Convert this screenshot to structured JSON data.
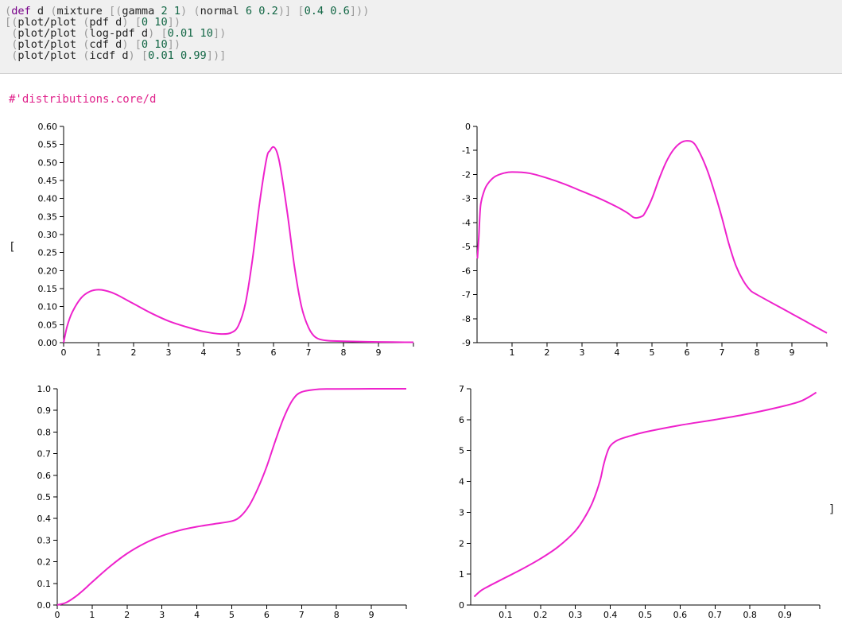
{
  "code_lines": [
    [
      [
        "paren",
        "("
      ],
      [
        "kw",
        "def"
      ],
      [
        "sym",
        " d "
      ],
      [
        "paren",
        "("
      ],
      [
        "sym",
        "mixture "
      ],
      [
        "br",
        "["
      ],
      [
        "paren",
        "("
      ],
      [
        "sym",
        "gamma "
      ],
      [
        "num",
        "2 1"
      ],
      [
        "paren",
        ")"
      ],
      [
        "sym",
        " "
      ],
      [
        "paren",
        "("
      ],
      [
        "sym",
        "normal "
      ],
      [
        "num",
        "6 0.2"
      ],
      [
        "paren",
        ")"
      ],
      [
        "br",
        "]"
      ],
      [
        "sym",
        " "
      ],
      [
        "br",
        "["
      ],
      [
        "num",
        "0.4 0.6"
      ],
      [
        "br",
        "]"
      ],
      [
        "paren",
        "))"
      ]
    ],
    [
      [
        "br",
        "["
      ],
      [
        "paren",
        "("
      ],
      [
        "sym",
        "plot/plot "
      ],
      [
        "paren",
        "("
      ],
      [
        "sym",
        "pdf d"
      ],
      [
        "paren",
        ")"
      ],
      [
        "sym",
        " "
      ],
      [
        "br",
        "["
      ],
      [
        "num",
        "0 10"
      ],
      [
        "br",
        "]"
      ],
      [
        "paren",
        ")"
      ]
    ],
    [
      [
        "sym",
        " "
      ],
      [
        "paren",
        "("
      ],
      [
        "sym",
        "plot/plot "
      ],
      [
        "paren",
        "("
      ],
      [
        "sym",
        "log-pdf d"
      ],
      [
        "paren",
        ")"
      ],
      [
        "sym",
        " "
      ],
      [
        "br",
        "["
      ],
      [
        "num",
        "0.01 10"
      ],
      [
        "br",
        "]"
      ],
      [
        "paren",
        ")"
      ]
    ],
    [
      [
        "sym",
        " "
      ],
      [
        "paren",
        "("
      ],
      [
        "sym",
        "plot/plot "
      ],
      [
        "paren",
        "("
      ],
      [
        "sym",
        "cdf d"
      ],
      [
        "paren",
        ")"
      ],
      [
        "sym",
        " "
      ],
      [
        "br",
        "["
      ],
      [
        "num",
        "0 10"
      ],
      [
        "br",
        "]"
      ],
      [
        "paren",
        ")"
      ]
    ],
    [
      [
        "sym",
        " "
      ],
      [
        "paren",
        "("
      ],
      [
        "sym",
        "plot/plot "
      ],
      [
        "paren",
        "("
      ],
      [
        "sym",
        "icdf d"
      ],
      [
        "paren",
        ")"
      ],
      [
        "sym",
        " "
      ],
      [
        "br",
        "["
      ],
      [
        "num",
        "0.01 0.99"
      ],
      [
        "br",
        "]"
      ],
      [
        "paren",
        ")]"
      ]
    ]
  ],
  "result_var": "#'distributions.core/d",
  "open_bracket": "[",
  "close_bracket": "]",
  "colors": {
    "curve": "#ee22cc",
    "result_var": "#e0248c",
    "code_bg": "#f0f0f0"
  },
  "chart_data": [
    {
      "type": "line",
      "xlim": [
        0,
        10
      ],
      "ylim": [
        0,
        0.6
      ],
      "x_ticks": [
        0,
        1,
        2,
        3,
        4,
        5,
        6,
        7,
        8,
        9
      ],
      "x_tick_labels": [
        "0",
        "1",
        "2",
        "3",
        "4",
        "5",
        "6",
        "7",
        "8",
        "9"
      ],
      "y_ticks": [
        0,
        0.05,
        0.1,
        0.15,
        0.2,
        0.25,
        0.3,
        0.35,
        0.4,
        0.45,
        0.5,
        0.55,
        0.6
      ],
      "y_tick_labels": [
        "0.00",
        "0.05",
        "0.10",
        "0.15",
        "0.20",
        "0.25",
        "0.30",
        "0.35",
        "0.40",
        "0.45",
        "0.50",
        "0.55",
        "0.60"
      ],
      "x": [
        0,
        0.1,
        0.25,
        0.5,
        0.75,
        1,
        1.25,
        1.5,
        2,
        2.5,
        3,
        3.5,
        4,
        4.5,
        4.8,
        5,
        5.2,
        5.4,
        5.6,
        5.8,
        5.9,
        6,
        6.1,
        6.2,
        6.4,
        6.6,
        6.8,
        7,
        7.2,
        7.5,
        8,
        9,
        10
      ],
      "y": [
        0,
        0.045,
        0.085,
        0.124,
        0.142,
        0.147,
        0.143,
        0.134,
        0.108,
        0.082,
        0.06,
        0.044,
        0.031,
        0.024,
        0.028,
        0.048,
        0.11,
        0.232,
        0.386,
        0.51,
        0.533,
        0.543,
        0.528,
        0.485,
        0.357,
        0.21,
        0.1,
        0.042,
        0.015,
        0.006,
        0.004,
        0.002,
        0.001
      ],
      "grid": false
    },
    {
      "type": "line",
      "xlim": [
        0,
        10
      ],
      "ylim": [
        -9,
        0
      ],
      "x_ticks": [
        1,
        2,
        3,
        4,
        5,
        6,
        7,
        8,
        9
      ],
      "x_tick_labels": [
        "1",
        "2",
        "3",
        "4",
        "5",
        "6",
        "7",
        "8",
        "9"
      ],
      "y_ticks": [
        0,
        -1,
        -2,
        -3,
        -4,
        -5,
        -6,
        -7,
        -8,
        -9
      ],
      "y_tick_labels": [
        "0",
        "-1",
        "-2",
        "-3",
        "-4",
        "-5",
        "-6",
        "-7",
        "-8",
        "-9"
      ],
      "x": [
        0.01,
        0.05,
        0.1,
        0.2,
        0.3,
        0.5,
        0.75,
        1,
        1.5,
        2,
        2.5,
        3,
        3.5,
        4,
        4.3,
        4.5,
        4.7,
        4.8,
        5,
        5.2,
        5.4,
        5.6,
        5.8,
        6,
        6.2,
        6.4,
        6.6,
        6.8,
        7,
        7.2,
        7.4,
        7.6,
        7.8,
        8,
        9,
        10
      ],
      "y": [
        -5.5,
        -4.6,
        -3.3,
        -2.7,
        -2.4,
        -2.1,
        -1.95,
        -1.9,
        -1.95,
        -2.15,
        -2.4,
        -2.7,
        -3.0,
        -3.35,
        -3.6,
        -3.8,
        -3.75,
        -3.6,
        -3.0,
        -2.2,
        -1.5,
        -1.0,
        -0.7,
        -0.6,
        -0.7,
        -1.2,
        -1.9,
        -2.8,
        -3.8,
        -4.9,
        -5.8,
        -6.4,
        -6.8,
        -7.0,
        -7.8,
        -8.6
      ],
      "grid": false
    },
    {
      "type": "line",
      "xlim": [
        0,
        10
      ],
      "ylim": [
        0,
        1
      ],
      "x_ticks": [
        0,
        1,
        2,
        3,
        4,
        5,
        6,
        7,
        8,
        9
      ],
      "x_tick_labels": [
        "0",
        "1",
        "2",
        "3",
        "4",
        "5",
        "6",
        "7",
        "8",
        "9"
      ],
      "y_ticks": [
        0,
        0.1,
        0.2,
        0.3,
        0.4,
        0.5,
        0.6,
        0.7,
        0.8,
        0.9,
        1.0
      ],
      "y_tick_labels": [
        "0.0",
        "0.1",
        "0.2",
        "0.3",
        "0.4",
        "0.5",
        "0.6",
        "0.7",
        "0.8",
        "0.9",
        "1.0"
      ],
      "x": [
        0,
        0.25,
        0.5,
        0.75,
        1,
        1.5,
        2,
        2.5,
        3,
        3.5,
        4,
        4.5,
        5,
        5.25,
        5.5,
        5.75,
        6,
        6.25,
        6.5,
        6.75,
        7,
        7.5,
        8,
        9,
        10
      ],
      "y": [
        0,
        0.011,
        0.036,
        0.069,
        0.106,
        0.177,
        0.238,
        0.285,
        0.32,
        0.345,
        0.362,
        0.375,
        0.388,
        0.41,
        0.46,
        0.54,
        0.64,
        0.76,
        0.87,
        0.95,
        0.985,
        0.998,
        0.999,
        1.0,
        1.0
      ],
      "grid": false
    },
    {
      "type": "line",
      "xlim": [
        0,
        1
      ],
      "ylim": [
        0,
        7
      ],
      "x_ticks": [
        0.1,
        0.2,
        0.3,
        0.4,
        0.5,
        0.6,
        0.7,
        0.8,
        0.9
      ],
      "x_tick_labels": [
        "0.1",
        "0.2",
        "0.3",
        "0.4",
        "0.5",
        "0.6",
        "0.7",
        "0.8",
        "0.9"
      ],
      "y_ticks": [
        0,
        1,
        2,
        3,
        4,
        5,
        6,
        7
      ],
      "y_tick_labels": [
        "0",
        "1",
        "2",
        "3",
        "4",
        "5",
        "6",
        "7"
      ],
      "x": [
        0.01,
        0.03,
        0.05,
        0.1,
        0.15,
        0.2,
        0.25,
        0.3,
        0.33,
        0.35,
        0.37,
        0.38,
        0.39,
        0.4,
        0.42,
        0.45,
        0.5,
        0.6,
        0.7,
        0.8,
        0.9,
        0.95,
        0.99
      ],
      "y": [
        0.27,
        0.47,
        0.6,
        0.89,
        1.18,
        1.5,
        1.88,
        2.4,
        2.9,
        3.35,
        4.0,
        4.5,
        4.9,
        5.15,
        5.33,
        5.45,
        5.6,
        5.82,
        6.0,
        6.2,
        6.45,
        6.62,
        6.88
      ],
      "grid": false
    }
  ]
}
